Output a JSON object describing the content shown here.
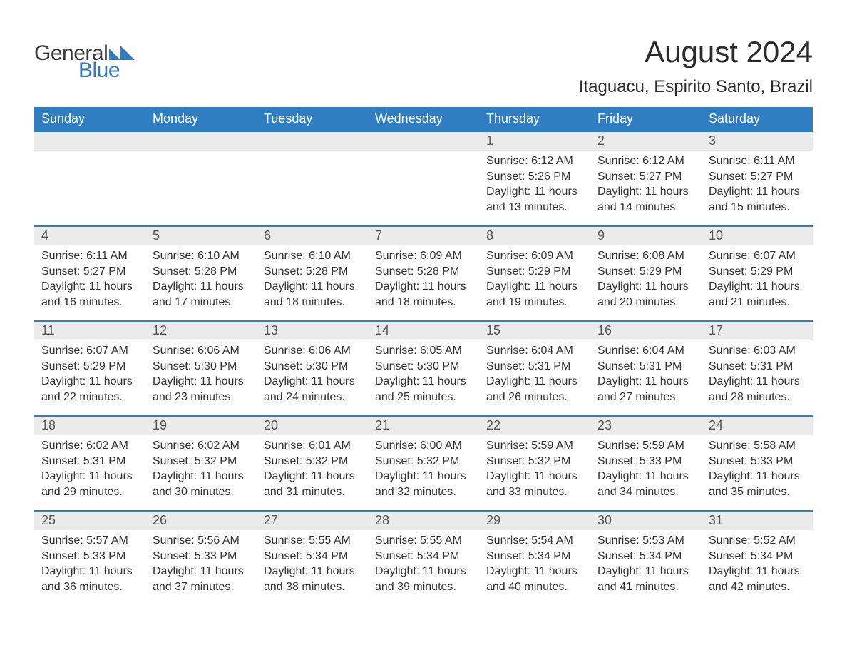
{
  "logo": {
    "text1": "General",
    "text2": "Blue",
    "mark_color": "#2f7ec2",
    "text1_color": "#3a3a3a"
  },
  "title": "August 2024",
  "location": "Itaguacu, Espirito Santo, Brazil",
  "colors": {
    "header_bg": "#2f7ec2",
    "header_text": "#ffffff",
    "daynum_bg": "#ebebeb",
    "daynum_text": "#555555",
    "body_text": "#333333",
    "row_border": "#2f7ec2",
    "page_bg": "#ffffff"
  },
  "typography": {
    "title_fontsize_pt": 32,
    "location_fontsize_pt": 18,
    "header_fontsize_pt": 14,
    "daynum_fontsize_pt": 14,
    "body_fontsize_pt": 12,
    "font_family": "Arial"
  },
  "weekdays": [
    "Sunday",
    "Monday",
    "Tuesday",
    "Wednesday",
    "Thursday",
    "Friday",
    "Saturday"
  ],
  "weeks": [
    [
      {
        "n": "",
        "sr": "",
        "ss": "",
        "dl": ""
      },
      {
        "n": "",
        "sr": "",
        "ss": "",
        "dl": ""
      },
      {
        "n": "",
        "sr": "",
        "ss": "",
        "dl": ""
      },
      {
        "n": "",
        "sr": "",
        "ss": "",
        "dl": ""
      },
      {
        "n": "1",
        "sr": "Sunrise: 6:12 AM",
        "ss": "Sunset: 5:26 PM",
        "dl": "Daylight: 11 hours and 13 minutes."
      },
      {
        "n": "2",
        "sr": "Sunrise: 6:12 AM",
        "ss": "Sunset: 5:27 PM",
        "dl": "Daylight: 11 hours and 14 minutes."
      },
      {
        "n": "3",
        "sr": "Sunrise: 6:11 AM",
        "ss": "Sunset: 5:27 PM",
        "dl": "Daylight: 11 hours and 15 minutes."
      }
    ],
    [
      {
        "n": "4",
        "sr": "Sunrise: 6:11 AM",
        "ss": "Sunset: 5:27 PM",
        "dl": "Daylight: 11 hours and 16 minutes."
      },
      {
        "n": "5",
        "sr": "Sunrise: 6:10 AM",
        "ss": "Sunset: 5:28 PM",
        "dl": "Daylight: 11 hours and 17 minutes."
      },
      {
        "n": "6",
        "sr": "Sunrise: 6:10 AM",
        "ss": "Sunset: 5:28 PM",
        "dl": "Daylight: 11 hours and 18 minutes."
      },
      {
        "n": "7",
        "sr": "Sunrise: 6:09 AM",
        "ss": "Sunset: 5:28 PM",
        "dl": "Daylight: 11 hours and 18 minutes."
      },
      {
        "n": "8",
        "sr": "Sunrise: 6:09 AM",
        "ss": "Sunset: 5:29 PM",
        "dl": "Daylight: 11 hours and 19 minutes."
      },
      {
        "n": "9",
        "sr": "Sunrise: 6:08 AM",
        "ss": "Sunset: 5:29 PM",
        "dl": "Daylight: 11 hours and 20 minutes."
      },
      {
        "n": "10",
        "sr": "Sunrise: 6:07 AM",
        "ss": "Sunset: 5:29 PM",
        "dl": "Daylight: 11 hours and 21 minutes."
      }
    ],
    [
      {
        "n": "11",
        "sr": "Sunrise: 6:07 AM",
        "ss": "Sunset: 5:29 PM",
        "dl": "Daylight: 11 hours and 22 minutes."
      },
      {
        "n": "12",
        "sr": "Sunrise: 6:06 AM",
        "ss": "Sunset: 5:30 PM",
        "dl": "Daylight: 11 hours and 23 minutes."
      },
      {
        "n": "13",
        "sr": "Sunrise: 6:06 AM",
        "ss": "Sunset: 5:30 PM",
        "dl": "Daylight: 11 hours and 24 minutes."
      },
      {
        "n": "14",
        "sr": "Sunrise: 6:05 AM",
        "ss": "Sunset: 5:30 PM",
        "dl": "Daylight: 11 hours and 25 minutes."
      },
      {
        "n": "15",
        "sr": "Sunrise: 6:04 AM",
        "ss": "Sunset: 5:31 PM",
        "dl": "Daylight: 11 hours and 26 minutes."
      },
      {
        "n": "16",
        "sr": "Sunrise: 6:04 AM",
        "ss": "Sunset: 5:31 PM",
        "dl": "Daylight: 11 hours and 27 minutes."
      },
      {
        "n": "17",
        "sr": "Sunrise: 6:03 AM",
        "ss": "Sunset: 5:31 PM",
        "dl": "Daylight: 11 hours and 28 minutes."
      }
    ],
    [
      {
        "n": "18",
        "sr": "Sunrise: 6:02 AM",
        "ss": "Sunset: 5:31 PM",
        "dl": "Daylight: 11 hours and 29 minutes."
      },
      {
        "n": "19",
        "sr": "Sunrise: 6:02 AM",
        "ss": "Sunset: 5:32 PM",
        "dl": "Daylight: 11 hours and 30 minutes."
      },
      {
        "n": "20",
        "sr": "Sunrise: 6:01 AM",
        "ss": "Sunset: 5:32 PM",
        "dl": "Daylight: 11 hours and 31 minutes."
      },
      {
        "n": "21",
        "sr": "Sunrise: 6:00 AM",
        "ss": "Sunset: 5:32 PM",
        "dl": "Daylight: 11 hours and 32 minutes."
      },
      {
        "n": "22",
        "sr": "Sunrise: 5:59 AM",
        "ss": "Sunset: 5:32 PM",
        "dl": "Daylight: 11 hours and 33 minutes."
      },
      {
        "n": "23",
        "sr": "Sunrise: 5:59 AM",
        "ss": "Sunset: 5:33 PM",
        "dl": "Daylight: 11 hours and 34 minutes."
      },
      {
        "n": "24",
        "sr": "Sunrise: 5:58 AM",
        "ss": "Sunset: 5:33 PM",
        "dl": "Daylight: 11 hours and 35 minutes."
      }
    ],
    [
      {
        "n": "25",
        "sr": "Sunrise: 5:57 AM",
        "ss": "Sunset: 5:33 PM",
        "dl": "Daylight: 11 hours and 36 minutes."
      },
      {
        "n": "26",
        "sr": "Sunrise: 5:56 AM",
        "ss": "Sunset: 5:33 PM",
        "dl": "Daylight: 11 hours and 37 minutes."
      },
      {
        "n": "27",
        "sr": "Sunrise: 5:55 AM",
        "ss": "Sunset: 5:34 PM",
        "dl": "Daylight: 11 hours and 38 minutes."
      },
      {
        "n": "28",
        "sr": "Sunrise: 5:55 AM",
        "ss": "Sunset: 5:34 PM",
        "dl": "Daylight: 11 hours and 39 minutes."
      },
      {
        "n": "29",
        "sr": "Sunrise: 5:54 AM",
        "ss": "Sunset: 5:34 PM",
        "dl": "Daylight: 11 hours and 40 minutes."
      },
      {
        "n": "30",
        "sr": "Sunrise: 5:53 AM",
        "ss": "Sunset: 5:34 PM",
        "dl": "Daylight: 11 hours and 41 minutes."
      },
      {
        "n": "31",
        "sr": "Sunrise: 5:52 AM",
        "ss": "Sunset: 5:34 PM",
        "dl": "Daylight: 11 hours and 42 minutes."
      }
    ]
  ]
}
